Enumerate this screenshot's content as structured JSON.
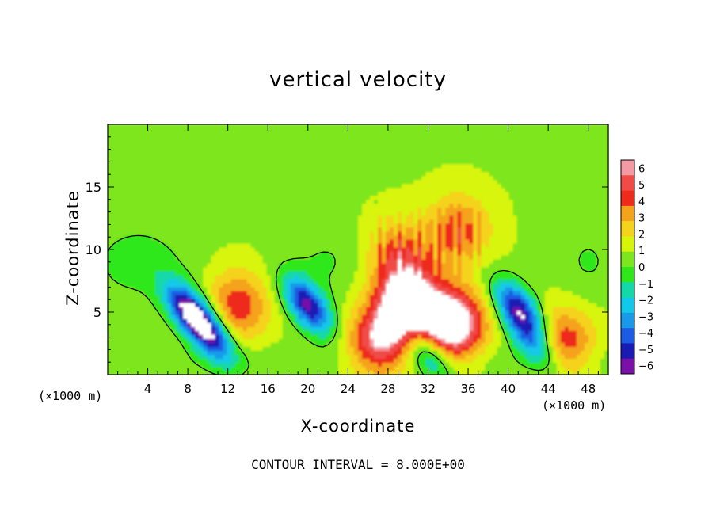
{
  "chart_data": {
    "type": "heatmap",
    "title": "vertical velocity",
    "xlabel": "X-coordinate",
    "ylabel": "Z-coordinate",
    "x_unit_label": "(×1000 m)",
    "x_unit_label_right": "(×1000 m)",
    "xlim": [
      0,
      50
    ],
    "ylim": [
      0,
      20
    ],
    "x_ticks": [
      4,
      8,
      12,
      16,
      20,
      24,
      28,
      32,
      36,
      40,
      44,
      48
    ],
    "y_ticks": [
      5,
      10,
      15
    ],
    "colorbar": {
      "levels": [
        6,
        5,
        4,
        3,
        2,
        1,
        0,
        -1,
        -2,
        -3,
        -4,
        -5,
        -6
      ],
      "labels": [
        "6",
        "5",
        "4",
        "3",
        "2",
        "1",
        "0",
        "−1",
        "−2",
        "−3",
        "−4",
        "−5",
        "−6"
      ],
      "colors": [
        "#f49aa4",
        "#f04b46",
        "#ee2a1a",
        "#f5a21c",
        "#f5d21c",
        "#d7f50a",
        "#7de61e",
        "#2ee81a",
        "#13d8a8",
        "#12c8e9",
        "#199ae9",
        "#1c5be4",
        "#1a1ab4",
        "#7a10a8"
      ]
    },
    "features": [
      {
        "kind": "updraft",
        "x": 30,
        "z": 5.5,
        "peak": 8
      },
      {
        "kind": "updraft",
        "x": 34.5,
        "z": 4,
        "peak": 7.5
      },
      {
        "kind": "updraft",
        "x": 27,
        "z": 2.5,
        "peak": 5
      },
      {
        "kind": "updraft",
        "x": 29,
        "z": 9.5,
        "peak": 3.5
      },
      {
        "kind": "updraft",
        "x": 35,
        "z": 11.5,
        "peak": 3.5
      },
      {
        "kind": "updraft",
        "x": 13,
        "z": 5.5,
        "peak": 3.8
      },
      {
        "kind": "updraft",
        "x": 45.5,
        "z": 2.5,
        "peak": 4
      },
      {
        "kind": "downdraft",
        "x": 8,
        "z": 5.2,
        "peak": -6.5
      },
      {
        "kind": "downdraft",
        "x": 10.3,
        "z": 3.2,
        "peak": -6.5
      },
      {
        "kind": "downdraft",
        "x": 20,
        "z": 5.5,
        "peak": -7
      },
      {
        "kind": "downdraft",
        "x": 41,
        "z": 5.3,
        "peak": -6.5
      },
      {
        "kind": "downdraft",
        "x": 42.5,
        "z": 2.5,
        "peak": -4.5
      },
      {
        "kind": "downdraft",
        "x": 31.8,
        "z": 1.8,
        "peak": -4
      }
    ],
    "contour_interval": "CONTOUR INTERVAL = 8.000E+00"
  }
}
